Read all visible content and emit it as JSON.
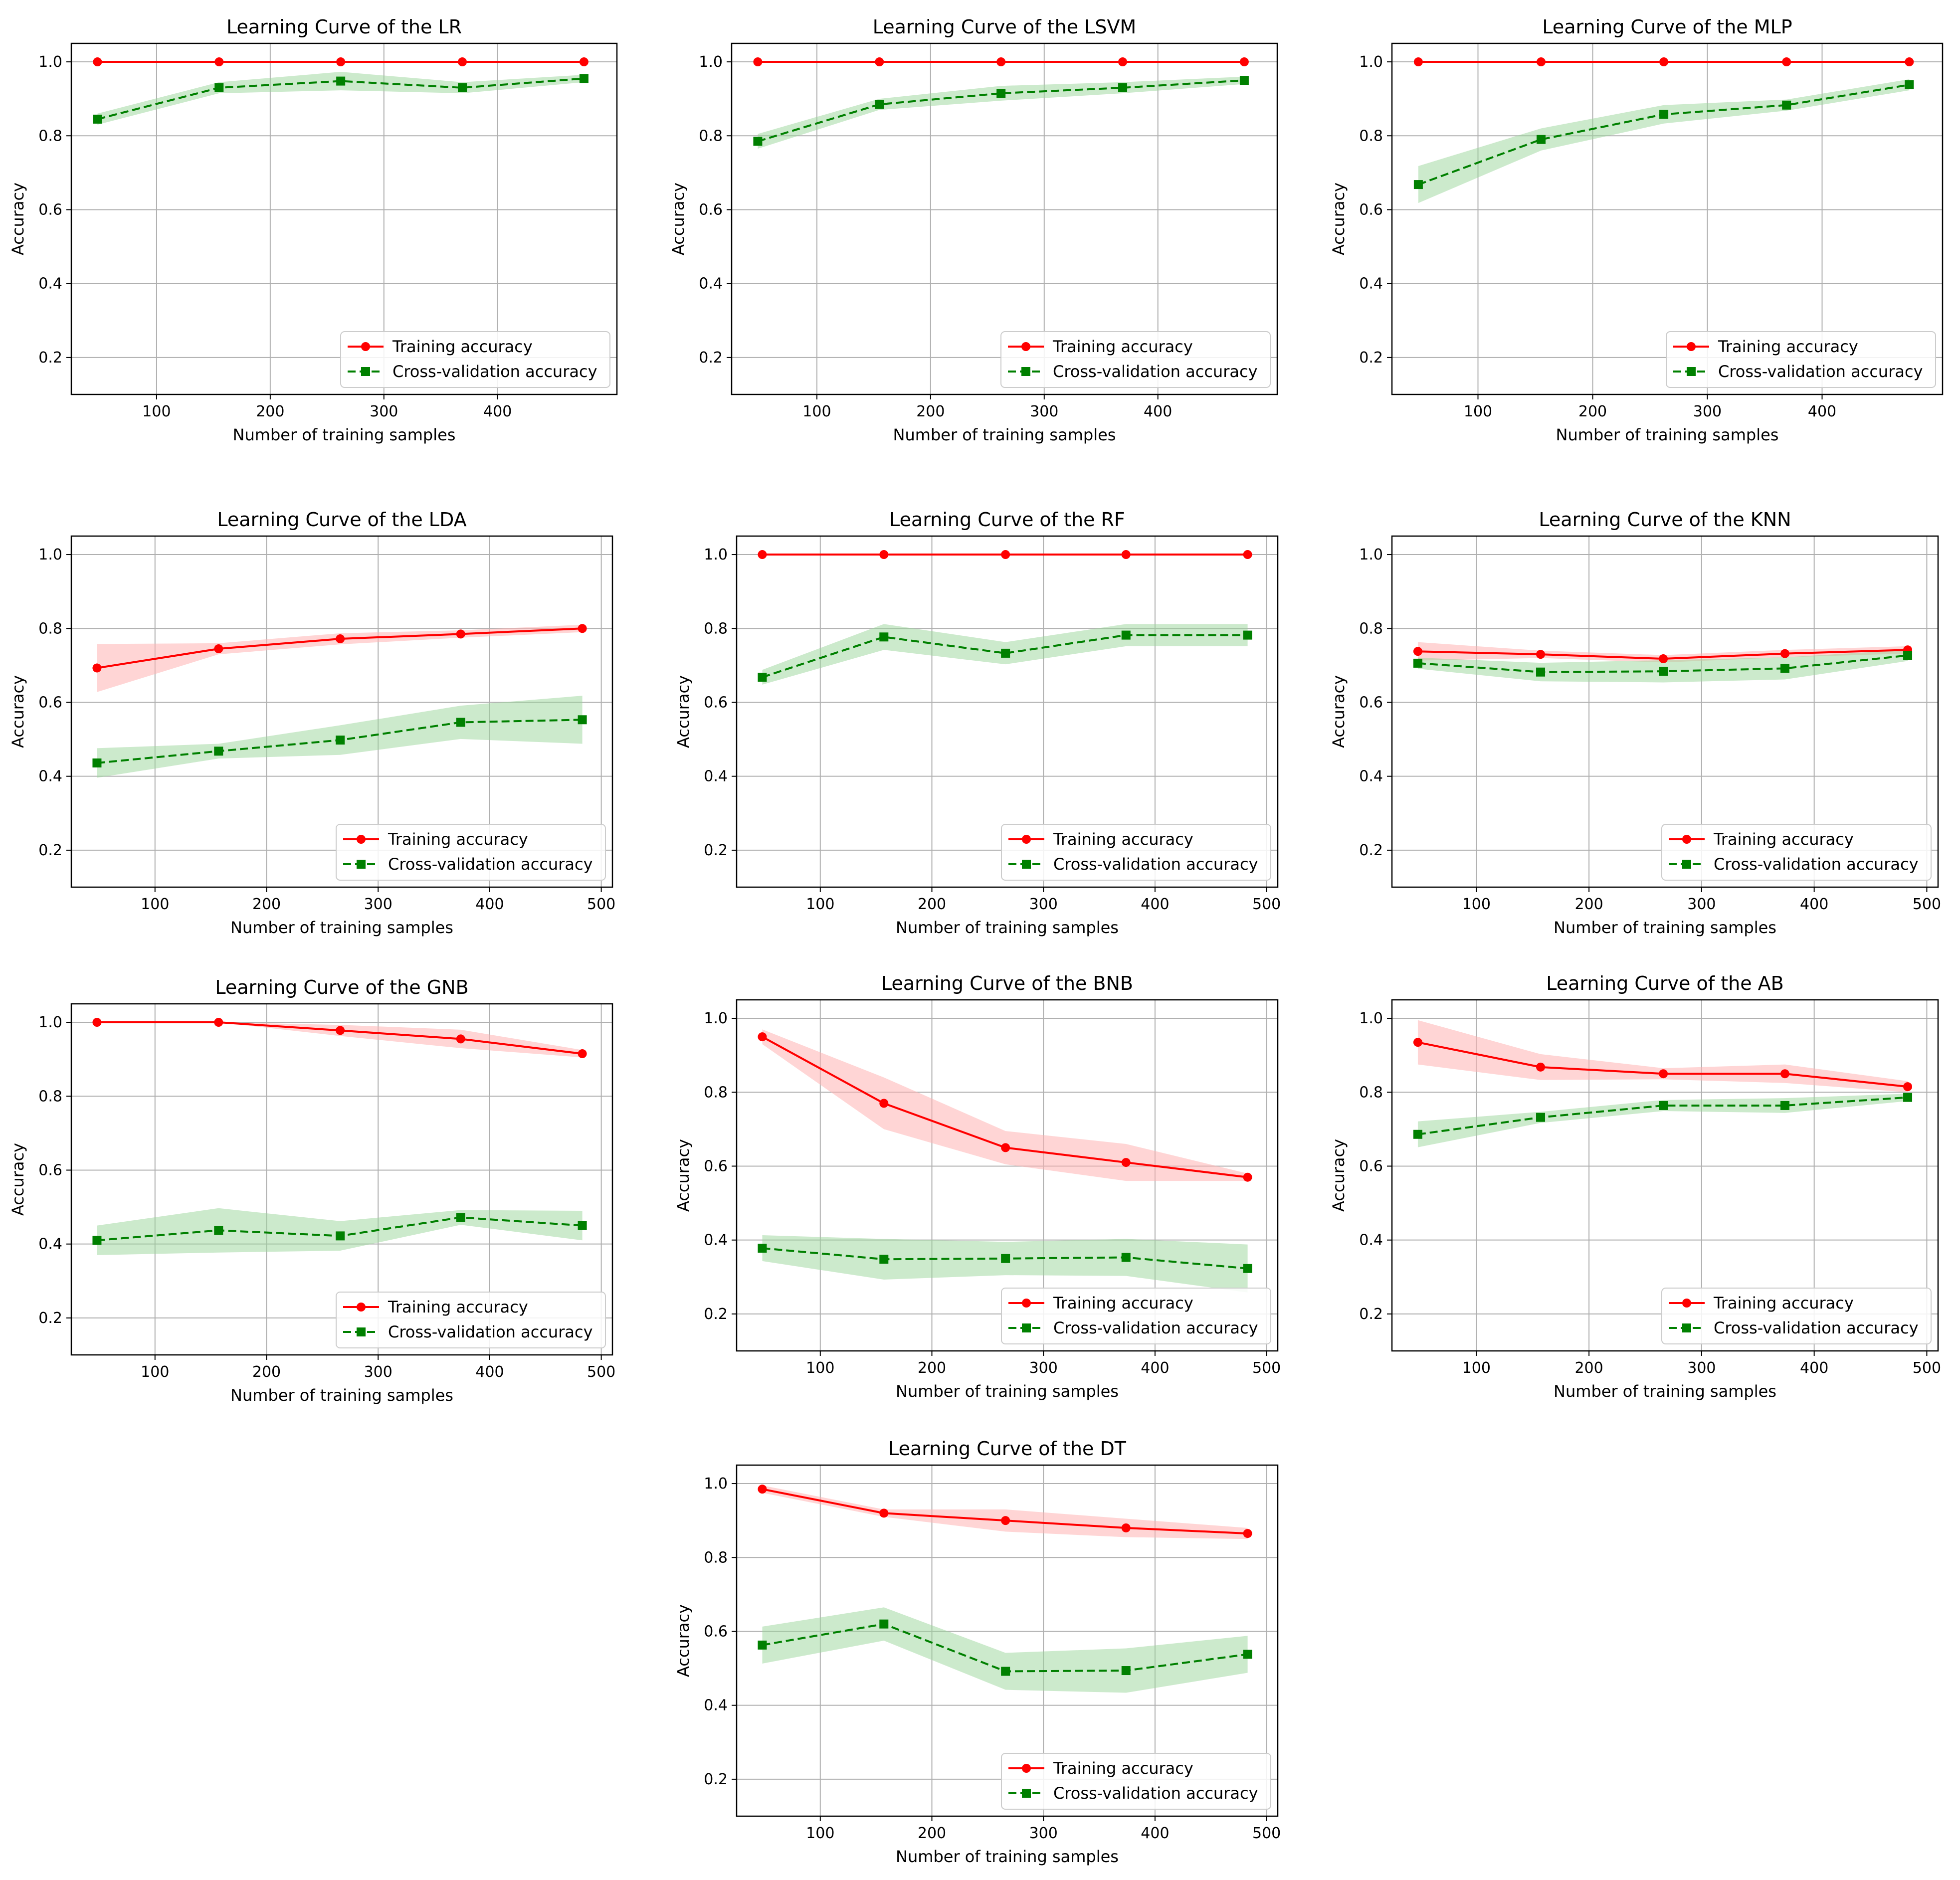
{
  "colors": {
    "training": "#ff0000",
    "training_band": "#ffb3b3",
    "cv": "#008000",
    "cv_band": "#99d699",
    "grid": "#b0b0b0",
    "axes": "#000000"
  },
  "chart_data": [
    {
      "type": "line",
      "title": "Learning Curve of the LR",
      "xlabel": "Number of training samples",
      "ylabel": "Accuracy",
      "xlim": [
        25,
        505
      ],
      "ylim": [
        0.1,
        1.05
      ],
      "xticks": [
        100,
        200,
        300,
        400
      ],
      "xtick_labels": [
        "100",
        "200",
        "300",
        "400"
      ],
      "yticks": [
        0.2,
        0.4,
        0.6,
        0.8,
        1.0
      ],
      "ytick_labels": [
        "0.2",
        "0.4",
        "0.6",
        "0.8",
        "1.0"
      ],
      "grid": true,
      "legend": "lower-right",
      "x": [
        48,
        155,
        262,
        369,
        476
      ],
      "series": [
        {
          "name": "Training accuracy",
          "values": [
            1.0,
            1.0,
            1.0,
            1.0,
            1.0
          ],
          "std": [
            0.0,
            0.0,
            0.0,
            0.0,
            0.0
          ]
        },
        {
          "name": "Cross-validation accuracy",
          "values": [
            0.845,
            0.93,
            0.948,
            0.93,
            0.955
          ],
          "std": [
            0.015,
            0.015,
            0.025,
            0.015,
            0.01
          ]
        }
      ]
    },
    {
      "type": "line",
      "title": "Learning Curve of the LSVM",
      "xlabel": "Number of training samples",
      "ylabel": "Accuracy",
      "xlim": [
        25,
        505
      ],
      "ylim": [
        0.1,
        1.05
      ],
      "xticks": [
        100,
        200,
        300,
        400
      ],
      "xtick_labels": [
        "100",
        "200",
        "300",
        "400"
      ],
      "yticks": [
        0.2,
        0.4,
        0.6,
        0.8,
        1.0
      ],
      "ytick_labels": [
        "0.2",
        "0.4",
        "0.6",
        "0.8",
        "1.0"
      ],
      "grid": true,
      "legend": "lower-right",
      "x": [
        48,
        155,
        262,
        369,
        476
      ],
      "series": [
        {
          "name": "Training accuracy",
          "values": [
            1.0,
            1.0,
            1.0,
            1.0,
            1.0
          ],
          "std": [
            0.0,
            0.0,
            0.0,
            0.0,
            0.0
          ]
        },
        {
          "name": "Cross-validation accuracy",
          "values": [
            0.785,
            0.885,
            0.915,
            0.93,
            0.95
          ],
          "std": [
            0.02,
            0.015,
            0.02,
            0.015,
            0.01
          ]
        }
      ]
    },
    {
      "type": "line",
      "title": "Learning Curve of the MLP",
      "xlabel": "Number of training samples",
      "ylabel": "Accuracy",
      "xlim": [
        25,
        505
      ],
      "ylim": [
        0.1,
        1.05
      ],
      "xticks": [
        100,
        200,
        300,
        400
      ],
      "xtick_labels": [
        "100",
        "200",
        "300",
        "400"
      ],
      "yticks": [
        0.2,
        0.4,
        0.6,
        0.8,
        1.0
      ],
      "ytick_labels": [
        "0.2",
        "0.4",
        "0.6",
        "0.8",
        "1.0"
      ],
      "grid": true,
      "legend": "lower-right",
      "x": [
        48,
        155,
        262,
        369,
        476
      ],
      "series": [
        {
          "name": "Training accuracy",
          "values": [
            1.0,
            1.0,
            1.0,
            1.0,
            1.0
          ],
          "std": [
            0.0,
            0.0,
            0.0,
            0.0,
            0.0
          ]
        },
        {
          "name": "Cross-validation accuracy",
          "values": [
            0.668,
            0.79,
            0.858,
            0.883,
            0.938
          ],
          "std": [
            0.05,
            0.03,
            0.025,
            0.015,
            0.015
          ]
        }
      ]
    },
    {
      "type": "line",
      "title": "Learning Curve of the LDA",
      "xlabel": "Number of training samples",
      "ylabel": "Accuracy",
      "xlim": [
        25,
        510
      ],
      "ylim": [
        0.1,
        1.05
      ],
      "xticks": [
        100,
        200,
        300,
        400,
        500
      ],
      "xtick_labels": [
        "100",
        "200",
        "300",
        "400",
        "500"
      ],
      "yticks": [
        0.2,
        0.4,
        0.6,
        0.8,
        1.0
      ],
      "ytick_labels": [
        "0.2",
        "0.4",
        "0.6",
        "0.8",
        "1.0"
      ],
      "grid": true,
      "legend": "lower-right",
      "x": [
        48,
        157,
        266,
        374,
        483
      ],
      "series": [
        {
          "name": "Training accuracy",
          "values": [
            0.693,
            0.745,
            0.772,
            0.785,
            0.8
          ],
          "std": [
            0.065,
            0.015,
            0.015,
            0.01,
            0.01
          ]
        },
        {
          "name": "Cross-validation accuracy",
          "values": [
            0.436,
            0.468,
            0.498,
            0.546,
            0.553
          ],
          "std": [
            0.04,
            0.02,
            0.04,
            0.045,
            0.065
          ]
        }
      ]
    },
    {
      "type": "line",
      "title": "Learning Curve of the RF",
      "xlabel": "Number of training samples",
      "ylabel": "Accuracy",
      "xlim": [
        25,
        510
      ],
      "ylim": [
        0.1,
        1.05
      ],
      "xticks": [
        100,
        200,
        300,
        400,
        500
      ],
      "xtick_labels": [
        "100",
        "200",
        "300",
        "400",
        "500"
      ],
      "yticks": [
        0.2,
        0.4,
        0.6,
        0.8,
        1.0
      ],
      "ytick_labels": [
        "0.2",
        "0.4",
        "0.6",
        "0.8",
        "1.0"
      ],
      "grid": true,
      "legend": "lower-right",
      "x": [
        48,
        157,
        266,
        374,
        483
      ],
      "series": [
        {
          "name": "Training accuracy",
          "values": [
            1.0,
            1.0,
            1.0,
            1.0,
            1.0
          ],
          "std": [
            0.0,
            0.0,
            0.0,
            0.0,
            0.0
          ]
        },
        {
          "name": "Cross-validation accuracy",
          "values": [
            0.668,
            0.777,
            0.733,
            0.782,
            0.782
          ],
          "std": [
            0.02,
            0.035,
            0.03,
            0.03,
            0.03
          ]
        }
      ]
    },
    {
      "type": "line",
      "title": "Learning Curve of the KNN",
      "xlabel": "Number of training samples",
      "ylabel": "Accuracy",
      "xlim": [
        25,
        510
      ],
      "ylim": [
        0.1,
        1.05
      ],
      "xticks": [
        100,
        200,
        300,
        400,
        500
      ],
      "xtick_labels": [
        "100",
        "200",
        "300",
        "400",
        "500"
      ],
      "yticks": [
        0.2,
        0.4,
        0.6,
        0.8,
        1.0
      ],
      "ytick_labels": [
        "0.2",
        "0.4",
        "0.6",
        "0.8",
        "1.0"
      ],
      "grid": true,
      "legend": "lower-right",
      "x": [
        48,
        157,
        266,
        374,
        483
      ],
      "series": [
        {
          "name": "Training accuracy",
          "values": [
            0.738,
            0.73,
            0.718,
            0.732,
            0.742
          ],
          "std": [
            0.025,
            0.01,
            0.01,
            0.01,
            0.01
          ]
        },
        {
          "name": "Cross-validation accuracy",
          "values": [
            0.706,
            0.682,
            0.684,
            0.692,
            0.727
          ],
          "std": [
            0.015,
            0.025,
            0.03,
            0.03,
            0.015
          ]
        }
      ]
    },
    {
      "type": "line",
      "title": "Learning Curve of the GNB",
      "xlabel": "Number of training samples",
      "ylabel": "Accuracy",
      "xlim": [
        25,
        510
      ],
      "ylim": [
        0.1,
        1.05
      ],
      "xticks": [
        100,
        200,
        300,
        400,
        500
      ],
      "xtick_labels": [
        "100",
        "200",
        "300",
        "400",
        "500"
      ],
      "yticks": [
        0.2,
        0.4,
        0.6,
        0.8,
        1.0
      ],
      "ytick_labels": [
        "0.2",
        "0.4",
        "0.6",
        "0.8",
        "1.0"
      ],
      "grid": true,
      "legend": "lower-right",
      "x": [
        48,
        157,
        266,
        374,
        483
      ],
      "series": [
        {
          "name": "Training accuracy",
          "values": [
            1.0,
            1.0,
            0.978,
            0.955,
            0.915
          ],
          "std": [
            0.0,
            0.0,
            0.015,
            0.025,
            0.01
          ]
        },
        {
          "name": "Cross-validation accuracy",
          "values": [
            0.41,
            0.437,
            0.422,
            0.472,
            0.45
          ],
          "std": [
            0.04,
            0.06,
            0.04,
            0.02,
            0.04
          ]
        }
      ]
    },
    {
      "type": "line",
      "title": "Learning Curve of the BNB",
      "xlabel": "Number of training samples",
      "ylabel": "Accuracy",
      "xlim": [
        25,
        510
      ],
      "ylim": [
        0.1,
        1.05
      ],
      "xticks": [
        100,
        200,
        300,
        400,
        500
      ],
      "xtick_labels": [
        "100",
        "200",
        "300",
        "400",
        "500"
      ],
      "yticks": [
        0.2,
        0.4,
        0.6,
        0.8,
        1.0
      ],
      "ytick_labels": [
        "0.2",
        "0.4",
        "0.6",
        "0.8",
        "1.0"
      ],
      "grid": true,
      "legend": "lower-right",
      "x": [
        48,
        157,
        266,
        374,
        483
      ],
      "series": [
        {
          "name": "Training accuracy",
          "values": [
            0.95,
            0.77,
            0.65,
            0.61,
            0.57
          ],
          "std": [
            0.02,
            0.07,
            0.045,
            0.05,
            0.01
          ]
        },
        {
          "name": "Cross-validation accuracy",
          "values": [
            0.378,
            0.348,
            0.35,
            0.353,
            0.323
          ],
          "std": [
            0.035,
            0.055,
            0.045,
            0.05,
            0.065
          ]
        }
      ]
    },
    {
      "type": "line",
      "title": "Learning Curve of the AB",
      "xlabel": "Number of training samples",
      "ylabel": "Accuracy",
      "xlim": [
        25,
        510
      ],
      "ylim": [
        0.1,
        1.05
      ],
      "xticks": [
        100,
        200,
        300,
        400,
        500
      ],
      "xtick_labels": [
        "100",
        "200",
        "300",
        "400",
        "500"
      ],
      "yticks": [
        0.2,
        0.4,
        0.6,
        0.8,
        1.0
      ],
      "ytick_labels": [
        "0.2",
        "0.4",
        "0.6",
        "0.8",
        "1.0"
      ],
      "grid": true,
      "legend": "lower-right",
      "x": [
        48,
        157,
        266,
        374,
        483
      ],
      "series": [
        {
          "name": "Training accuracy",
          "values": [
            0.935,
            0.868,
            0.85,
            0.85,
            0.815
          ],
          "std": [
            0.06,
            0.035,
            0.015,
            0.025,
            0.015
          ]
        },
        {
          "name": "Cross-validation accuracy",
          "values": [
            0.686,
            0.732,
            0.764,
            0.764,
            0.786
          ],
          "std": [
            0.035,
            0.015,
            0.015,
            0.02,
            0.01
          ]
        }
      ]
    },
    {
      "type": "line",
      "title": "Learning Curve of the DT",
      "xlabel": "Number of training samples",
      "ylabel": "Accuracy",
      "xlim": [
        25,
        510
      ],
      "ylim": [
        0.1,
        1.05
      ],
      "xticks": [
        100,
        200,
        300,
        400,
        500
      ],
      "xtick_labels": [
        "100",
        "200",
        "300",
        "400",
        "500"
      ],
      "yticks": [
        0.2,
        0.4,
        0.6,
        0.8,
        1.0
      ],
      "ytick_labels": [
        "0.2",
        "0.4",
        "0.6",
        "0.8",
        "1.0"
      ],
      "grid": true,
      "legend": "lower-right",
      "x": [
        48,
        157,
        266,
        374,
        483
      ],
      "series": [
        {
          "name": "Training accuracy",
          "values": [
            0.985,
            0.92,
            0.9,
            0.88,
            0.865
          ],
          "std": [
            0.01,
            0.01,
            0.03,
            0.025,
            0.015
          ]
        },
        {
          "name": "Cross-validation accuracy",
          "values": [
            0.563,
            0.62,
            0.492,
            0.494,
            0.538
          ],
          "std": [
            0.05,
            0.045,
            0.05,
            0.06,
            0.05
          ]
        }
      ]
    }
  ]
}
